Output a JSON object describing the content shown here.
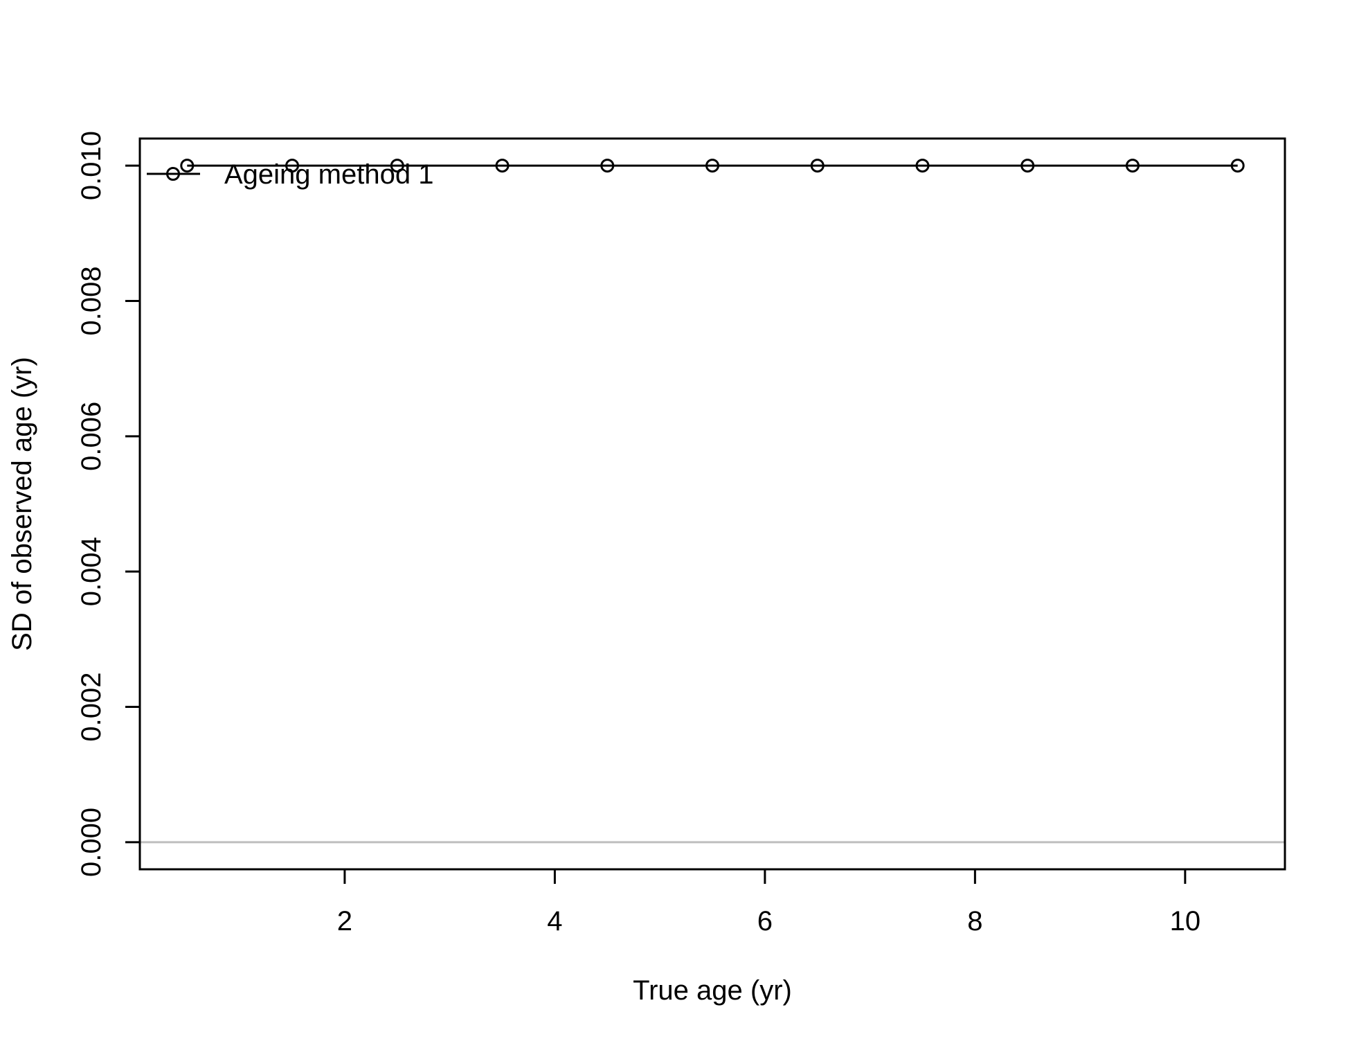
{
  "chart_data": {
    "type": "line",
    "title": "",
    "xlabel": "True age (yr)",
    "ylabel": "SD of observed age (yr)",
    "xlim": [
      0.05,
      10.95
    ],
    "ylim": [
      -0.0004,
      0.0104
    ],
    "x_ticks": [
      2,
      4,
      6,
      8,
      10
    ],
    "x_tick_labels": [
      "2",
      "4",
      "6",
      "8",
      "10"
    ],
    "y_ticks": [
      0,
      0.002,
      0.004,
      0.006,
      0.008,
      0.01
    ],
    "y_tick_labels": [
      "0.000",
      "0.002",
      "0.004",
      "0.006",
      "0.008",
      "0.010"
    ],
    "reference_line": {
      "y": 0,
      "color": "#bebebe"
    },
    "grid": false,
    "legend_position": "top-left",
    "series": [
      {
        "name": "Ageing method 1",
        "color": "#000000",
        "marker": "open-circle",
        "x": [
          0.5,
          1.5,
          2.5,
          3.5,
          4.5,
          5.5,
          6.5,
          7.5,
          8.5,
          9.5,
          10.5
        ],
        "values": [
          0.01,
          0.01,
          0.01,
          0.01,
          0.01,
          0.01,
          0.01,
          0.01,
          0.01,
          0.01,
          0.01
        ]
      }
    ]
  }
}
